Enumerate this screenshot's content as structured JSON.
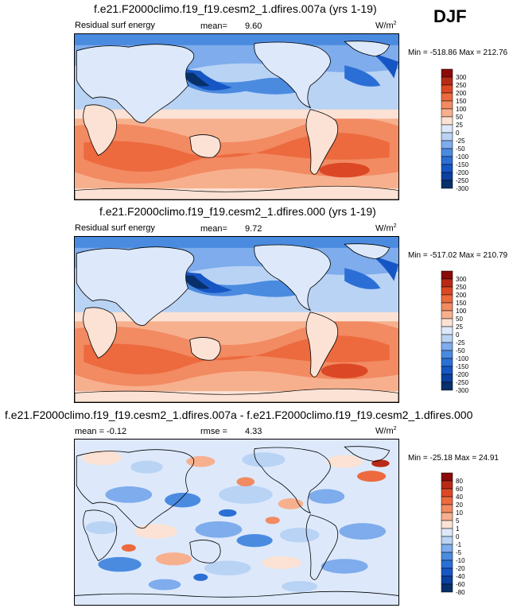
{
  "season": "DJF",
  "panels": [
    {
      "title": "f.e21.F2000climo.f19_f19.cesm2_1.dfires.007a (yrs 1-19)",
      "left_label": "Residual surf energy",
      "mid_label": "mean=",
      "mid_value": "9.60",
      "units": "W/m",
      "units_sup": "2",
      "minmax": "Min = -518.86 Max = 212.76",
      "levels": [
        "300",
        "250",
        "200",
        "150",
        "100",
        "50",
        "25",
        "0",
        "-25",
        "-50",
        "-100",
        "-150",
        "-200",
        "-250",
        "-300"
      ],
      "palette": "abs"
    },
    {
      "title": "f.e21.F2000climo.f19_f19.cesm2_1.dfires.000 (yrs 1-19)",
      "left_label": "Residual surf energy",
      "mid_label": "mean=",
      "mid_value": "9.72",
      "units": "W/m",
      "units_sup": "2",
      "minmax": "Min = -517.02 Max = 210.79",
      "levels": [
        "300",
        "250",
        "200",
        "150",
        "100",
        "50",
        "25",
        "0",
        "-25",
        "-50",
        "-100",
        "-150",
        "-200",
        "-250",
        "-300"
      ],
      "palette": "abs"
    },
    {
      "title": "f.e21.F2000climo.f19_f19.cesm2_1.dfires.007a - f.e21.F2000climo.f19_f19.cesm2_1.dfires.000",
      "left_label": "mean =  -0.12",
      "mid_label": "rmse =",
      "mid_value": "4.33",
      "units": "W/m",
      "units_sup": "2",
      "minmax": "Min = -25.18 Max =  24.91",
      "levels": [
        "80",
        "60",
        "40",
        "20",
        "10",
        "5",
        "1",
        "0",
        "-1",
        "-5",
        "-10",
        "-20",
        "-40",
        "-60",
        "-80"
      ],
      "palette": "diff"
    }
  ],
  "chart_data": [
    {
      "type": "heatmap",
      "title": "f.e21.F2000climo.f19_f19.cesm2_1.dfires.007a (yrs 1-19)",
      "variable": "Residual surf energy",
      "units": "W/m2",
      "mean": 9.6,
      "min": -518.86,
      "max": 212.76,
      "contour_levels": [
        -300,
        -250,
        -200,
        -150,
        -100,
        -50,
        -25,
        0,
        25,
        50,
        100,
        150,
        200,
        250,
        300
      ],
      "colors": [
        "#08306b",
        "#0b3fa0",
        "#1656c4",
        "#2b6fd6",
        "#4a8be0",
        "#7eacec",
        "#b9d3f5",
        "#dde9fb",
        "#fbe2d4",
        "#f7b08e",
        "#f28a62",
        "#ec6a3e",
        "#dc4826",
        "#b92a16",
        "#8b0a0a"
      ]
    },
    {
      "type": "heatmap",
      "title": "f.e21.F2000climo.f19_f19.cesm2_1.dfires.000 (yrs 1-19)",
      "variable": "Residual surf energy",
      "units": "W/m2",
      "mean": 9.72,
      "min": -517.02,
      "max": 210.79,
      "contour_levels": [
        -300,
        -250,
        -200,
        -150,
        -100,
        -50,
        -25,
        0,
        25,
        50,
        100,
        150,
        200,
        250,
        300
      ],
      "colors": [
        "#08306b",
        "#0b3fa0",
        "#1656c4",
        "#2b6fd6",
        "#4a8be0",
        "#7eacec",
        "#b9d3f5",
        "#dde9fb",
        "#fbe2d4",
        "#f7b08e",
        "#f28a62",
        "#ec6a3e",
        "#dc4826",
        "#b92a16",
        "#8b0a0a"
      ]
    },
    {
      "type": "heatmap",
      "title": "f.e21.F2000climo.f19_f19.cesm2_1.dfires.007a - f.e21.F2000climo.f19_f19.cesm2_1.dfires.000",
      "units": "W/m2",
      "mean": -0.12,
      "rmse": 4.33,
      "min": -25.18,
      "max": 24.91,
      "contour_levels": [
        -80,
        -60,
        -40,
        -20,
        -10,
        -5,
        -1,
        0,
        1,
        5,
        10,
        20,
        40,
        60,
        80
      ],
      "colors": [
        "#08306b",
        "#0b3fa0",
        "#1656c4",
        "#2b6fd6",
        "#4a8be0",
        "#7eacec",
        "#b9d3f5",
        "#dde9fb",
        "#fbe2d4",
        "#f7b08e",
        "#f28a62",
        "#ec6a3e",
        "#dc4826",
        "#b92a16",
        "#8b0a0a"
      ]
    }
  ]
}
